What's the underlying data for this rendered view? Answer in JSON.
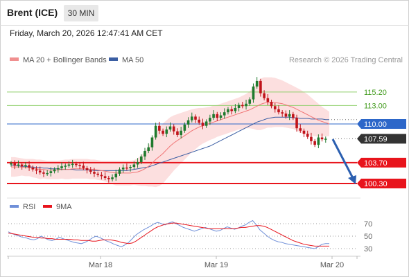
{
  "header": {
    "title": "Brent (ICE)",
    "interval": "30 MIN",
    "timestamp": "Friday, March 20, 2026 12:47:41 AM CET"
  },
  "legend": {
    "ma20": "MA 20 + Bollinger Bands",
    "ma50": "MA 50",
    "credit": "Research © 2026 Trading Central",
    "rsi": "RSI",
    "ma9": "9MA"
  },
  "colors": {
    "candle_up": "#1f7a2e",
    "candle_down": "#c0131a",
    "ma20": "#f07575",
    "bollinger": "#fbd7d7",
    "ma50": "#3b5ea3",
    "support": "#e8141c",
    "resistance": "#8fcf6b",
    "resistance_label": "#3f9a1a",
    "pivot": "#2d67c9",
    "rsi": "#6f8fd8",
    "rsi_ma": "#e8141c",
    "arrow": "#2b5fb0"
  },
  "chart_data": [
    {
      "type": "candlestick",
      "x_ticks": [
        "Mar 18",
        "Mar 19",
        "Mar 20"
      ],
      "y_axis_labels": [
        "115.20",
        "113.00",
        "110.00",
        "107.59",
        "103.70",
        "100.30"
      ],
      "levels": {
        "resistance": [
          115.2,
          113.0
        ],
        "pivot": 110.0,
        "support": [
          103.7,
          100.3
        ],
        "last": 107.59
      },
      "close": [
        103.6,
        103.2,
        103.4,
        103.1,
        103.3,
        102.9,
        102.6,
        102.4,
        102.1,
        101.9,
        102.0,
        102.3,
        102.6,
        102.8,
        103.1,
        103.2,
        103.4,
        103.5,
        103.3,
        103.2,
        102.8,
        102.5,
        102.2,
        101.9,
        101.7,
        101.5,
        101.2,
        101.0,
        101.3,
        101.9,
        102.6,
        102.9,
        102.8,
        103.0,
        103.4,
        103.8,
        104.7,
        105.6,
        106.2,
        107.8,
        109.7,
        108.9,
        108.4,
        109.1,
        109.6,
        108.8,
        108.2,
        108.9,
        109.9,
        110.6,
        111.2,
        110.7,
        110.2,
        109.7,
        110.4,
        111.0,
        111.6,
        111.0,
        111.4,
        111.9,
        112.4,
        112.1,
        112.6,
        113.1,
        112.9,
        113.3,
        114.0,
        116.1,
        117.0,
        115.0,
        114.2,
        113.6,
        112.9,
        112.4,
        111.9,
        111.7,
        111.2,
        111.6,
        111.0,
        109.3,
        108.9,
        108.4,
        107.9,
        107.2,
        106.6,
        107.8,
        107.5,
        107.6,
        107.59
      ],
      "open": [
        103.4,
        103.6,
        103.2,
        103.4,
        103.1,
        103.3,
        102.9,
        102.6,
        102.4,
        102.1,
        101.9,
        102.0,
        102.3,
        102.6,
        102.8,
        103.1,
        103.2,
        103.4,
        103.5,
        103.3,
        103.2,
        102.8,
        102.5,
        102.2,
        101.9,
        101.7,
        101.5,
        101.2,
        101.0,
        101.3,
        101.9,
        102.6,
        102.9,
        102.8,
        103.0,
        103.4,
        103.8,
        104.7,
        105.6,
        106.2,
        107.8,
        109.7,
        108.9,
        108.4,
        109.1,
        109.6,
        108.8,
        108.2,
        108.9,
        109.9,
        110.6,
        111.2,
        110.7,
        110.2,
        109.7,
        110.4,
        111.0,
        111.6,
        111.0,
        111.4,
        111.9,
        112.4,
        112.1,
        112.6,
        113.1,
        112.9,
        113.3,
        114.0,
        116.1,
        117.0,
        115.0,
        114.2,
        113.6,
        112.9,
        112.4,
        111.9,
        111.7,
        111.2,
        111.6,
        111.0,
        109.3,
        108.9,
        108.4,
        107.9,
        107.2,
        106.6,
        107.8,
        107.5,
        107.6
      ],
      "ma20": [
        103.0,
        103.0,
        103.0,
        103.0,
        102.9,
        102.9,
        102.8,
        102.7,
        102.6,
        102.6,
        102.5,
        102.5,
        102.5,
        102.5,
        102.6,
        102.6,
        102.6,
        102.7,
        102.7,
        102.7,
        102.7,
        102.7,
        102.6,
        102.6,
        102.5,
        102.4,
        102.3,
        102.2,
        102.1,
        102.0,
        102.0,
        102.0,
        102.0,
        102.0,
        102.1,
        102.2,
        102.4,
        102.7,
        103.1,
        103.6,
        104.2,
        104.7,
        105.2,
        105.8,
        106.4,
        106.9,
        107.3,
        107.7,
        108.1,
        108.5,
        108.9,
        109.2,
        109.5,
        109.7,
        109.9,
        110.1,
        110.3,
        110.5,
        110.7,
        110.9,
        111.1,
        111.3,
        111.5,
        111.7,
        111.9,
        112.1,
        112.3,
        112.6,
        112.9,
        113.2,
        113.4,
        113.5,
        113.5,
        113.5,
        113.4,
        113.3,
        113.1,
        112.9,
        112.7,
        112.4,
        112.1,
        111.8,
        111.5,
        111.2,
        110.9,
        110.6,
        110.4,
        110.2,
        110.0
      ],
      "bb_upper": [
        104.6,
        104.6,
        104.5,
        104.4,
        104.3,
        104.3,
        104.3,
        104.2,
        104.2,
        104.1,
        104.0,
        104.0,
        104.0,
        104.0,
        104.1,
        104.2,
        104.2,
        104.3,
        104.3,
        104.3,
        104.3,
        104.3,
        104.2,
        104.2,
        104.1,
        104.0,
        104.0,
        104.0,
        104.0,
        104.0,
        104.0,
        104.0,
        104.0,
        104.0,
        104.1,
        104.4,
        104.9,
        105.5,
        106.4,
        107.4,
        108.7,
        109.5,
        110.1,
        110.6,
        111.1,
        111.4,
        111.6,
        111.8,
        112.0,
        112.2,
        112.4,
        112.5,
        112.6,
        112.6,
        112.7,
        112.8,
        113.0,
        113.1,
        113.3,
        113.5,
        113.7,
        113.9,
        114.1,
        114.3,
        114.6,
        114.9,
        115.3,
        116.0,
        116.8,
        117.4,
        117.6,
        117.6,
        117.6,
        117.5,
        117.3,
        117.1,
        116.8,
        116.5,
        116.2,
        115.9,
        115.6,
        115.2,
        114.8,
        114.3,
        113.8,
        113.3,
        112.8,
        112.4,
        112.0
      ],
      "bb_lower": [
        101.4,
        101.4,
        101.5,
        101.6,
        101.5,
        101.5,
        101.3,
        101.2,
        101.0,
        101.1,
        101.0,
        101.0,
        101.0,
        101.0,
        101.1,
        101.0,
        101.0,
        101.1,
        101.1,
        101.1,
        101.1,
        101.1,
        101.0,
        101.0,
        100.9,
        100.8,
        100.6,
        100.4,
        100.2,
        100.0,
        100.0,
        100.0,
        100.0,
        100.0,
        100.1,
        100.0,
        99.9,
        99.9,
        99.8,
        99.8,
        99.7,
        99.9,
        100.3,
        101.0,
        101.7,
        102.4,
        103.0,
        103.6,
        104.2,
        104.8,
        105.4,
        105.9,
        106.4,
        106.8,
        107.1,
        107.4,
        107.6,
        107.9,
        108.1,
        108.3,
        108.5,
        108.7,
        108.9,
        109.1,
        109.2,
        109.3,
        109.3,
        109.2,
        109.0,
        109.0,
        109.2,
        109.4,
        109.4,
        109.5,
        109.5,
        109.5,
        109.4,
        109.3,
        109.2,
        108.9,
        108.6,
        108.4,
        108.2,
        108.1,
        108.0,
        107.9,
        108.0,
        108.0,
        108.0
      ],
      "ma50": [
        103.3,
        103.3,
        103.2,
        103.1,
        103.1,
        103.0,
        103.0,
        102.9,
        102.9,
        102.8,
        102.8,
        102.7,
        102.7,
        102.7,
        102.6,
        102.6,
        102.6,
        102.6,
        102.5,
        102.5,
        102.5,
        102.5,
        102.5,
        102.4,
        102.4,
        102.4,
        102.4,
        102.4,
        102.4,
        102.4,
        102.4,
        102.4,
        102.4,
        102.5,
        102.6,
        102.7,
        102.8,
        102.9,
        103.0,
        103.2,
        103.4,
        103.6,
        103.8,
        104.0,
        104.2,
        104.4,
        104.6,
        104.8,
        105.0,
        105.2,
        105.4,
        105.6,
        105.8,
        106.0,
        106.2,
        106.4,
        106.7,
        107.0,
        107.3,
        107.6,
        107.9,
        108.2,
        108.5,
        108.8,
        109.1,
        109.4,
        109.7,
        110.0,
        110.3,
        110.5,
        110.7,
        110.9,
        111.0,
        111.1,
        111.1,
        111.1,
        111.1,
        111.1,
        111.0,
        111.0,
        110.9,
        110.9,
        110.9,
        110.8,
        110.8,
        110.8,
        110.8,
        110.7,
        110.7
      ]
    },
    {
      "type": "line",
      "series": [
        {
          "name": "RSI",
          "values": [
            57,
            54,
            52,
            50,
            48,
            47,
            45,
            44,
            46,
            50,
            47,
            44,
            43,
            45,
            48,
            46,
            44,
            42,
            40,
            39,
            38,
            40,
            43,
            47,
            50,
            48,
            45,
            42,
            40,
            37,
            35,
            33,
            36,
            40,
            46,
            52,
            56,
            60,
            63,
            66,
            70,
            72,
            70,
            68,
            71,
            73,
            70,
            67,
            64,
            62,
            60,
            58,
            60,
            62,
            64,
            62,
            60,
            58,
            59,
            62,
            65,
            63,
            61,
            63,
            66,
            68,
            72,
            75,
            68,
            60,
            55,
            50,
            46,
            43,
            41,
            40,
            38,
            37,
            36,
            35,
            34,
            33,
            32,
            31,
            30,
            33,
            37,
            38,
            38
          ]
        },
        {
          "name": "9MA",
          "values": [
            55,
            54,
            53,
            52,
            51,
            50,
            49,
            48,
            48,
            47,
            47,
            46,
            46,
            45,
            45,
            45,
            45,
            45,
            44,
            44,
            43,
            43,
            43,
            42,
            42,
            43,
            44,
            44,
            44,
            43,
            42,
            40,
            39,
            38,
            39,
            42,
            46,
            50,
            54,
            58,
            62,
            65,
            67,
            69,
            70,
            71,
            71,
            70,
            69,
            68,
            67,
            66,
            65,
            64,
            63,
            62,
            62,
            62,
            62,
            62,
            62,
            62,
            62,
            63,
            64,
            64,
            65,
            66,
            67,
            67,
            66,
            64,
            61,
            58,
            55,
            52,
            49,
            46,
            43,
            41,
            39,
            37,
            36,
            35,
            34,
            34,
            34,
            34,
            34
          ]
        }
      ],
      "y_ticks": [
        "70",
        "50",
        "30"
      ],
      "ylim": [
        20,
        90
      ]
    }
  ]
}
